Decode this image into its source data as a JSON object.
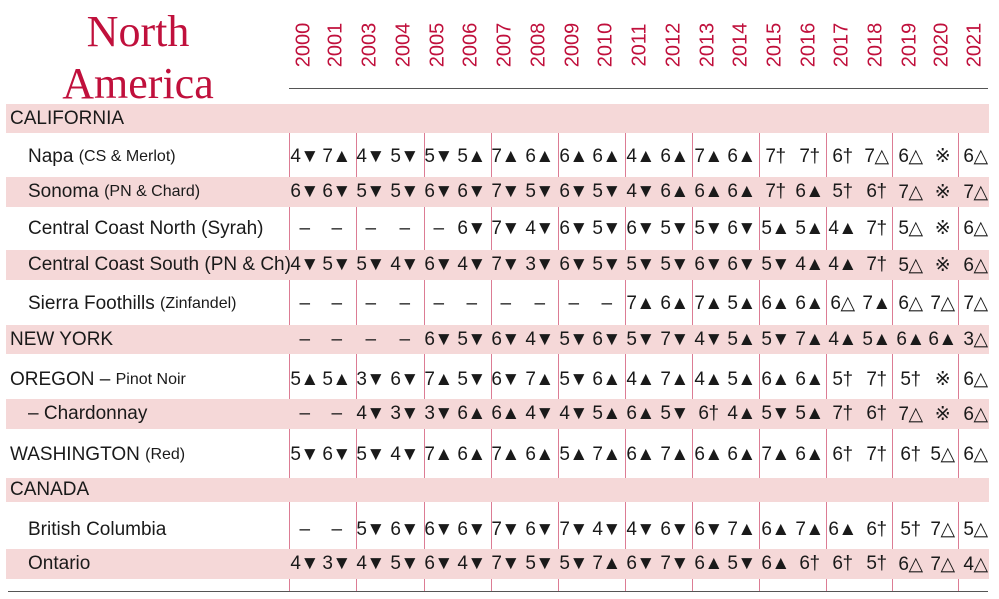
{
  "title": [
    "North",
    "America"
  ],
  "years": [
    "2000",
    "2001",
    "2003",
    "2004",
    "2005",
    "2006",
    "2007",
    "2008",
    "2009",
    "2010",
    "2011",
    "2012",
    "2013",
    "2014",
    "2015",
    "2016",
    "2017",
    "2018",
    "2019",
    "2020",
    "2021"
  ],
  "rows": [
    {
      "kind": "region",
      "shaded": true,
      "name": "CALIFORNIA",
      "note": "",
      "cells": [
        "",
        "",
        "",
        "",
        "",
        "",
        "",
        "",
        "",
        "",
        "",
        "",
        "",
        "",
        "",
        "",
        "",
        "",
        "",
        "",
        ""
      ]
    },
    {
      "kind": "sub",
      "shaded": false,
      "name": "Napa",
      "note": "(CS & Merlot)",
      "cells": [
        "4▼",
        "7▲",
        "4▼",
        "5▼",
        "5▼",
        "5▲",
        "7▲",
        "6▲",
        "6▲",
        "6▲",
        "4▲",
        "6▲",
        "7▲",
        "6▲",
        "7†",
        "7†",
        "6†",
        "7△",
        "6△",
        "※",
        "6△"
      ]
    },
    {
      "kind": "sub",
      "shaded": true,
      "name": "Sonoma",
      "note": "(PN & Chard)",
      "cells": [
        "6▼",
        "6▼",
        "5▼",
        "5▼",
        "6▼",
        "6▼",
        "7▼",
        "5▼",
        "6▼",
        "5▼",
        "4▼",
        "6▲",
        "6▲",
        "6▲",
        "7†",
        "6▲",
        "5†",
        "6†",
        "7△",
        "※",
        "7△"
      ]
    },
    {
      "kind": "sub",
      "shaded": false,
      "name": "Central Coast North (Syrah)",
      "note": "",
      "cells": [
        "–",
        "–",
        "–",
        "–",
        "–",
        "6▼",
        "7▼",
        "4▼",
        "6▼",
        "5▼",
        "6▼",
        "5▼",
        "5▼",
        "6▼",
        "5▲",
        "5▲",
        "4▲",
        "7†",
        "5△",
        "※",
        "6△"
      ]
    },
    {
      "kind": "sub",
      "shaded": true,
      "name": "Central Coast South (PN & Ch)",
      "note": "",
      "cells": [
        "4▼",
        "5▼",
        "5▼",
        "4▼",
        "6▼",
        "4▼",
        "7▼",
        "3▼",
        "6▼",
        "5▼",
        "5▼",
        "5▼",
        "6▼",
        "6▼",
        "5▼",
        "4▲",
        "4▲",
        "7†",
        "5△",
        "※",
        "6△"
      ]
    },
    {
      "kind": "sub",
      "shaded": false,
      "name": "Sierra Foothills",
      "note": "(Zinfandel)",
      "cells": [
        "–",
        "–",
        "–",
        "–",
        "–",
        "–",
        "–",
        "–",
        "–",
        "–",
        "7▲",
        "6▲",
        "7▲",
        "5▲",
        "6▲",
        "6▲",
        "6△",
        "7▲",
        "6△",
        "7△",
        "7△"
      ]
    },
    {
      "kind": "region",
      "shaded": true,
      "name": "NEW YORK",
      "note": "",
      "cells": [
        "–",
        "–",
        "–",
        "–",
        "6▼",
        "5▼",
        "6▼",
        "4▼",
        "5▼",
        "6▼",
        "5▼",
        "7▼",
        "4▼",
        "5▲",
        "5▼",
        "7▲",
        "4▲",
        "5▲",
        "6▲",
        "6▲",
        "3△"
      ]
    },
    {
      "kind": "region",
      "shaded": false,
      "name": "OREGON – ",
      "note": "Pinot Noir",
      "cells": [
        "5▲",
        "5▲",
        "3▼",
        "6▼",
        "7▲",
        "5▼",
        "6▼",
        "7▲",
        "5▼",
        "6▲",
        "4▲",
        "7▲",
        "4▲",
        "5▲",
        "6▲",
        "6▲",
        "5†",
        "7†",
        "5†",
        "※",
        "6△"
      ]
    },
    {
      "kind": "sub",
      "shaded": true,
      "name": "– Chardonnay",
      "note": "",
      "cells": [
        "–",
        "–",
        "4▼",
        "3▼",
        "3▼",
        "6▲",
        "6▲",
        "4▼",
        "4▼",
        "5▲",
        "6▲",
        "5▼",
        "6†",
        "4▲",
        "5▼",
        "5▲",
        "7†",
        "6†",
        "7△",
        "※",
        "6△"
      ]
    },
    {
      "kind": "region",
      "shaded": false,
      "name": "WASHINGTON",
      "note": "(Red)",
      "cells": [
        "5▼",
        "6▼",
        "5▼",
        "4▼",
        "7▲",
        "6▲",
        "7▲",
        "6▲",
        "5▲",
        "7▲",
        "6▲",
        "7▲",
        "6▲",
        "6▲",
        "7▲",
        "6▲",
        "6†",
        "7†",
        "6†",
        "5△",
        "6△"
      ]
    },
    {
      "kind": "region",
      "shaded": true,
      "name": "CANADA",
      "note": "",
      "cells": [
        "",
        "",
        "",
        "",
        "",
        "",
        "",
        "",
        "",
        "",
        "",
        "",
        "",
        "",
        "",
        "",
        "",
        "",
        "",
        "",
        ""
      ]
    },
    {
      "kind": "sub",
      "shaded": false,
      "name": "British Columbia",
      "note": "",
      "cells": [
        "–",
        "–",
        "5▼",
        "6▼",
        "6▼",
        "6▼",
        "7▼",
        "6▼",
        "7▼",
        "4▼",
        "4▼",
        "6▼",
        "6▼",
        "7▲",
        "6▲",
        "7▲",
        "6▲",
        "6†",
        "5†",
        "7△",
        "5△"
      ]
    },
    {
      "kind": "sub",
      "shaded": true,
      "name": "Ontario",
      "note": "",
      "cells": [
        "4▼",
        "3▼",
        "4▼",
        "5▼",
        "6▼",
        "4▼",
        "7▼",
        "5▼",
        "5▼",
        "7▲",
        "6▼",
        "7▼",
        "6▲",
        "5▼",
        "6▲",
        "6†",
        "6†",
        "5†",
        "6△",
        "7△",
        "4△"
      ]
    }
  ]
}
